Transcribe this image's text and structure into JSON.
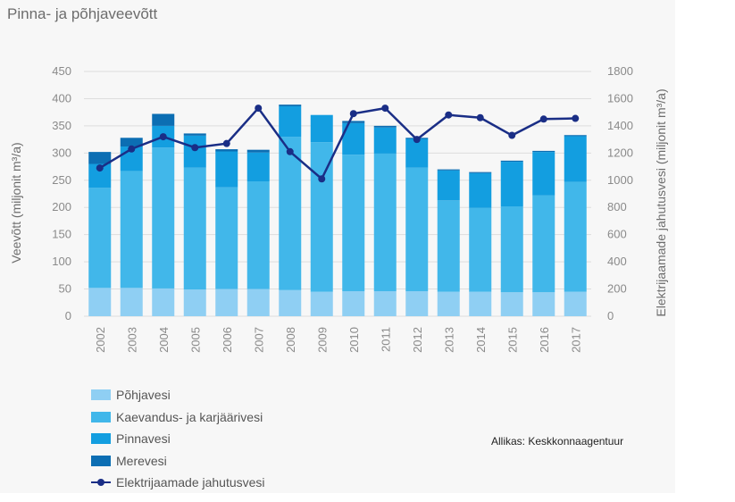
{
  "title": "Pinna- ja põhjaveevõtt",
  "source": "Allikas: Keskkonnaagentuur",
  "chart_data": {
    "type": "bar",
    "stacked": true,
    "categories": [
      "2002",
      "2003",
      "2004",
      "2005",
      "2006",
      "2007",
      "2008",
      "2009",
      "2010",
      "2011",
      "2012",
      "2013",
      "2014",
      "2015",
      "2016",
      "2017"
    ],
    "series": [
      {
        "name": "Põhjavesi",
        "color": "#8fcff3",
        "values": [
          52,
          52,
          51,
          49,
          50,
          50,
          48,
          45,
          46,
          46,
          46,
          45,
          45,
          44,
          44,
          45
        ]
      },
      {
        "name": "Kaevandus- ja karjäärivesi",
        "color": "#41b7ea",
        "values": [
          184,
          215,
          259,
          224,
          187,
          198,
          282,
          275,
          251,
          253,
          227,
          168,
          154,
          158,
          178,
          202
        ]
      },
      {
        "name": "Pinnavesi",
        "color": "#139ee0",
        "values": [
          44,
          45,
          40,
          59,
          66,
          53,
          56,
          50,
          58,
          48,
          53,
          55,
          64,
          82,
          80,
          84
        ]
      },
      {
        "name": "Merevesi",
        "color": "#0c6eb3",
        "values": [
          22,
          16,
          22,
          4,
          4,
          5,
          3,
          0,
          4,
          3,
          2,
          2,
          2,
          2,
          2,
          2
        ]
      }
    ],
    "line": {
      "name": "Elektrijaamade jahutusvesi",
      "color": "#1a2e86",
      "axis": "right",
      "values": [
        1090,
        1230,
        1320,
        1240,
        1270,
        1530,
        1210,
        1010,
        1490,
        1530,
        1300,
        1480,
        1460,
        1330,
        1450,
        1455
      ]
    },
    "y_left": {
      "label": "Veevõtt (miljonit m³/a)",
      "ticks": [
        0,
        50,
        100,
        150,
        200,
        250,
        300,
        350,
        400,
        450
      ],
      "lim": [
        0,
        450
      ]
    },
    "y_right": {
      "label": "Elektrijaamade jahutusvesi (miljonit m³/a)",
      "ticks": [
        0,
        200,
        400,
        600,
        800,
        1000,
        1200,
        1400,
        1600,
        1800
      ],
      "lim": [
        0,
        1800
      ]
    },
    "grid": true,
    "legend_position": "bottom-left"
  }
}
